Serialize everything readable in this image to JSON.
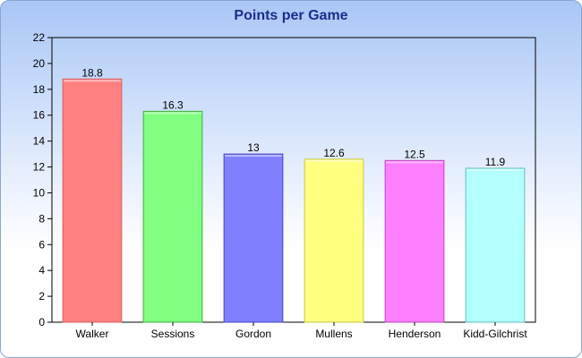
{
  "chart_data": {
    "type": "bar",
    "title": "Points per Game",
    "xlabel": "",
    "ylabel": "",
    "categories": [
      "Walker",
      "Sessions",
      "Gordon",
      "Mullens",
      "Henderson",
      "Kidd-Gilchrist"
    ],
    "values": [
      18.8,
      16.3,
      13,
      12.6,
      12.5,
      11.9
    ],
    "value_labels": [
      "18.8",
      "16.3",
      "13",
      "12.6",
      "12.5",
      "11.9"
    ],
    "ylim": [
      0,
      22
    ],
    "yticks": [
      "0",
      "2",
      "4",
      "6",
      "8",
      "10",
      "12",
      "14",
      "16",
      "18",
      "20",
      "22"
    ],
    "grid": false,
    "legend": "none",
    "colors": [
      "#ff8080",
      "#80ff80",
      "#8080ff",
      "#ffff80",
      "#ff80ff",
      "#b3ffff"
    ],
    "edge_colors": [
      "#d66060",
      "#40b040",
      "#4545c0",
      "#c8c840",
      "#c040c0",
      "#60c0c0"
    ]
  }
}
